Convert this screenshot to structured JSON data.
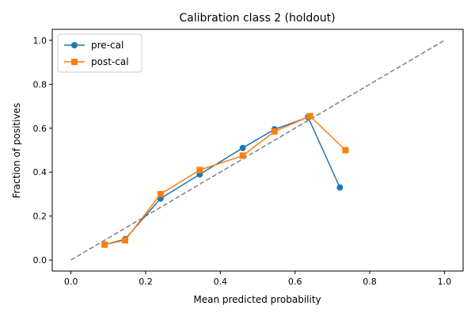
{
  "chart_data": {
    "type": "line",
    "title": "Calibration class 2 (holdout)",
    "xlabel": "Mean predicted probability",
    "ylabel": "Fraction of positives",
    "xlim": [
      -0.05,
      1.05
    ],
    "ylim": [
      -0.05,
      1.05
    ],
    "x_ticks": [
      "0.0",
      "0.2",
      "0.4",
      "0.6",
      "0.8",
      "1.0"
    ],
    "y_ticks": [
      "0.0",
      "0.2",
      "0.4",
      "0.6",
      "0.8",
      "1.0"
    ],
    "grid": false,
    "legend_position": "top-left",
    "reference_line": {
      "x": [
        0,
        1
      ],
      "y": [
        0,
        1
      ],
      "style": "dashed",
      "color": "#7f7f7f"
    },
    "series": [
      {
        "name": "pre-cal",
        "color": "#1f77b4",
        "marker": "circle",
        "x": [
          0.09,
          0.145,
          0.24,
          0.345,
          0.46,
          0.545,
          0.635,
          0.72
        ],
        "y": [
          0.07,
          0.095,
          0.28,
          0.39,
          0.51,
          0.595,
          0.65,
          0.33
        ]
      },
      {
        "name": "post-cal",
        "color": "#ff7f0e",
        "marker": "square",
        "x": [
          0.09,
          0.145,
          0.24,
          0.345,
          0.46,
          0.545,
          0.64,
          0.735
        ],
        "y": [
          0.07,
          0.09,
          0.3,
          0.41,
          0.475,
          0.585,
          0.655,
          0.5
        ]
      }
    ]
  }
}
